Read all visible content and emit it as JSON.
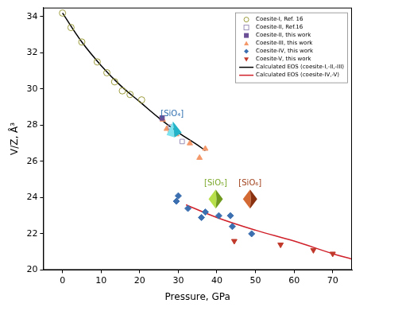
{
  "chart_data": {
    "type": "scatter",
    "x_label": "Pressure, GPa",
    "y_label": "V/Z, Å³",
    "xlim": [
      -5,
      75
    ],
    "xticks": [
      0,
      10,
      20,
      30,
      40,
      50,
      60,
      70
    ],
    "ylim": [
      20,
      34.5
    ],
    "yticks": [
      20,
      22,
      24,
      26,
      28,
      30,
      32,
      34
    ],
    "grid": false,
    "legend": "upper right",
    "series": [
      {
        "name": "Coesite-I, Ref. 16",
        "color": "#9c9c3c",
        "marker": "circle-open",
        "type": "scatter",
        "x": [
          0,
          2.2,
          5,
          9,
          11.5,
          13.5,
          15.5,
          17.5,
          20.5
        ],
        "values": [
          34.2,
          33.4,
          32.6,
          31.5,
          30.9,
          30.4,
          29.9,
          29.7,
          29.4
        ]
      },
      {
        "name": "Coesite-II, Ref.16",
        "color": "#9a8fb8",
        "marker": "square-open",
        "type": "scatter",
        "x": [
          28,
          31
        ],
        "values": [
          27.9,
          27.1
        ]
      },
      {
        "name": "Coesite-II, this work",
        "color": "#6a4f96",
        "marker": "square",
        "type": "scatter",
        "x": [
          25.8
        ],
        "values": [
          28.4
        ]
      },
      {
        "name": "Coesite-III, this work",
        "color": "#f4986a",
        "marker": "triangle",
        "type": "scatter",
        "x": [
          26,
          27,
          28,
          29.5,
          33,
          35.5,
          37
        ],
        "values": [
          28.3,
          27.8,
          27.7,
          27.5,
          27.0,
          26.2,
          26.7
        ]
      },
      {
        "name": "Coesite-IV, this work",
        "color": "#3b6fb0",
        "marker": "diamond",
        "type": "scatter",
        "x": [
          29.5,
          30,
          32.5,
          36,
          37,
          40.5,
          43.5,
          44,
          49
        ],
        "values": [
          23.8,
          24.1,
          23.4,
          22.9,
          23.2,
          23.0,
          23.0,
          22.4,
          22.0
        ]
      },
      {
        "name": "Coesite-V, this work",
        "color": "#c0392b",
        "marker": "triangle-down",
        "type": "scatter",
        "x": [
          44.5,
          56.5,
          65,
          70
        ],
        "values": [
          21.6,
          21.4,
          21.1,
          20.9
        ]
      },
      {
        "name": "Calculated EOS (coesite-I,-II,-III)",
        "color": "#000000",
        "marker": "none",
        "type": "line",
        "x": [
          0,
          5,
          10,
          15,
          20,
          25,
          30,
          35,
          37
        ],
        "values": [
          34.2,
          32.6,
          31.3,
          30.2,
          29.3,
          28.4,
          27.6,
          26.9,
          26.6
        ]
      },
      {
        "name": "Calculated EOS (coesite-IV,-V)",
        "color": "#d0202a",
        "marker": "none",
        "type": "line",
        "x": [
          32,
          40,
          50,
          60,
          70,
          75
        ],
        "values": [
          23.6,
          22.9,
          22.2,
          21.6,
          20.9,
          20.6
        ]
      }
    ],
    "annotations": [
      {
        "text": "[SiO₄]",
        "x": 28.4,
        "y": 28.6,
        "color": "#2f6fb0"
      },
      {
        "text": "[SiO₅]",
        "x": 39.7,
        "y": 24.8,
        "color": "#7aa82a"
      },
      {
        "text": "[SiO₆]",
        "x": 48.6,
        "y": 24.8,
        "color": "#a0401a"
      }
    ]
  }
}
